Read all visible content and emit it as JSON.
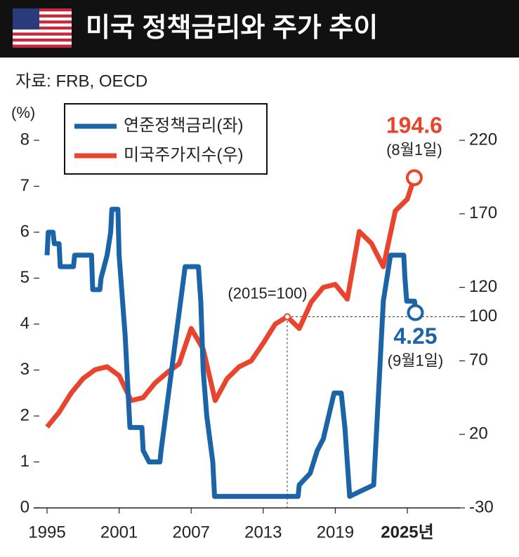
{
  "chart_data": {
    "type": "line",
    "title": "미국 정책금리와 주가 추이",
    "source": "자료: FRB, OECD",
    "ylabel": "(%)",
    "xlim": [
      1995,
      2030
    ],
    "xticks": [
      1995,
      2001,
      2007,
      2013,
      2019,
      {
        "value": 2025,
        "label": "2025년"
      }
    ],
    "ylim": [
      0,
      8
    ],
    "yticks": [
      0,
      1,
      2,
      3,
      4,
      5,
      6,
      7,
      8
    ],
    "y2lim": [
      -30,
      220
    ],
    "y2ticks": [
      -30,
      20,
      70,
      100,
      120,
      170,
      220
    ],
    "legend": "top-left",
    "base_point": {
      "x": 2015,
      "y": 100,
      "label": "(2015=100)"
    },
    "annotations": [
      {
        "text": "194.6",
        "sub": "(8월1일)",
        "series": 1
      },
      {
        "text": "4.25",
        "sub": "(9월1일)",
        "series": 0
      }
    ],
    "series": [
      {
        "name": "연준정책금리(좌)",
        "color": "#1b64a8",
        "axis": "y",
        "x": [
          1995.0,
          1995.1,
          1995.5,
          1995.6,
          1996.0,
          1996.1,
          1997.2,
          1997.3,
          1998.7,
          1998.8,
          1999.4,
          1999.5,
          2000.0,
          2000.3,
          2000.4,
          2000.9,
          2001.0,
          2001.5,
          2001.9,
          2002.9,
          2003.0,
          2003.5,
          2004.4,
          2004.5,
          2006.5,
          2007.6,
          2007.8,
          2008.0,
          2008.3,
          2008.8,
          2008.95,
          2015.9,
          2016.0,
          2016.9,
          2017.5,
          2018.0,
          2018.9,
          2019.5,
          2019.8,
          2020.2,
          2022.2,
          2022.6,
          2023.0,
          2023.6,
          2024.7,
          2024.8,
          2024.95,
          2025.6,
          2025.67
        ],
        "values": [
          5.5,
          6.0,
          6.0,
          5.75,
          5.75,
          5.25,
          5.25,
          5.5,
          5.5,
          4.75,
          4.75,
          5.0,
          5.5,
          6.0,
          6.5,
          6.5,
          5.5,
          3.75,
          1.75,
          1.75,
          1.25,
          1.0,
          1.0,
          1.25,
          5.25,
          5.25,
          4.5,
          3.0,
          2.0,
          1.0,
          0.25,
          0.25,
          0.5,
          0.75,
          1.25,
          1.5,
          2.5,
          2.5,
          1.75,
          0.25,
          0.5,
          2.5,
          4.5,
          5.5,
          5.5,
          5.0,
          4.5,
          4.5,
          4.25
        ]
      },
      {
        "name": "미국주가지수(우)",
        "color": "#e8442e",
        "axis": "y2",
        "x": [
          1995,
          1996,
          1997,
          1998,
          1999,
          2000,
          2001,
          2002,
          2003,
          2004,
          2005,
          2006,
          2007,
          2008,
          2009,
          2010,
          2011,
          2012,
          2013,
          2014,
          2015,
          2016,
          2017,
          2018,
          2019,
          2020,
          2021,
          2022,
          2023,
          2024,
          2025,
          2025.58
        ],
        "values": [
          25,
          35,
          48,
          58,
          64,
          66,
          60,
          43,
          45,
          55,
          62,
          68,
          92,
          78,
          43,
          58,
          66,
          70,
          82,
          95,
          100,
          92,
          110,
          120,
          122,
          112,
          158,
          150,
          134,
          172,
          180,
          194.6
        ]
      }
    ]
  }
}
